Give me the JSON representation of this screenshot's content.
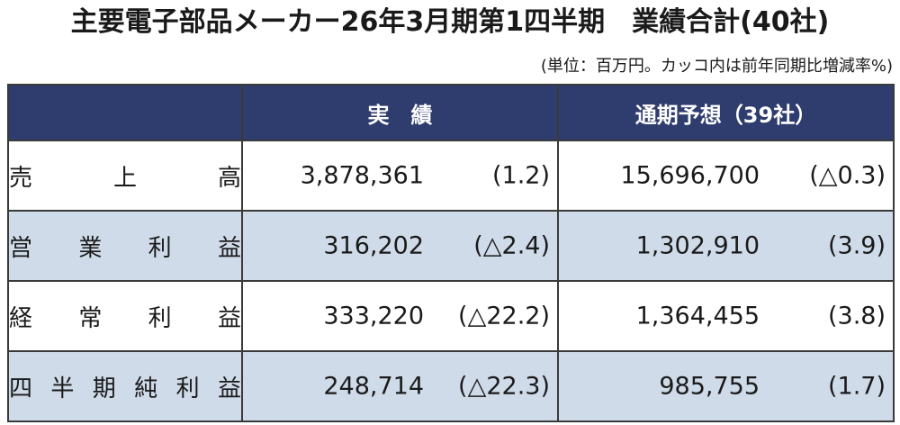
{
  "title": "主要電子部品メーカー26年3月期第1四半期　業績合計(40社)",
  "unit_note": "(単位：百万円。カッコ内は前年同期比増減率%)",
  "table": {
    "headers": {
      "actual": "実　績",
      "forecast": "通期予想（39社）"
    },
    "rows": [
      {
        "label_chars": [
          "売",
          "上",
          "高"
        ],
        "actual": "3,878,361",
        "actual_change": "(1.2)",
        "forecast": "15,696,700",
        "forecast_change": "(△0.3)"
      },
      {
        "label_chars": [
          "営",
          "業",
          "利",
          "益"
        ],
        "actual": "316,202",
        "actual_change": "(△2.4)",
        "forecast": "1,302,910",
        "forecast_change": "(3.9)"
      },
      {
        "label_chars": [
          "経",
          "常",
          "利",
          "益"
        ],
        "actual": "333,220",
        "actual_change": "(△22.2)",
        "forecast": "1,364,455",
        "forecast_change": "(3.8)"
      },
      {
        "label_chars": [
          "四",
          "半",
          "期",
          "純",
          "利",
          "益"
        ],
        "actual": "248,714",
        "actual_change": "(△22.3)",
        "forecast": "985,755",
        "forecast_change": "(1.7)"
      }
    ]
  },
  "colors": {
    "header_bg": "#2f3d6e",
    "shaded_row_bg": "#cfdbe9",
    "border": "#3a3a3a"
  }
}
